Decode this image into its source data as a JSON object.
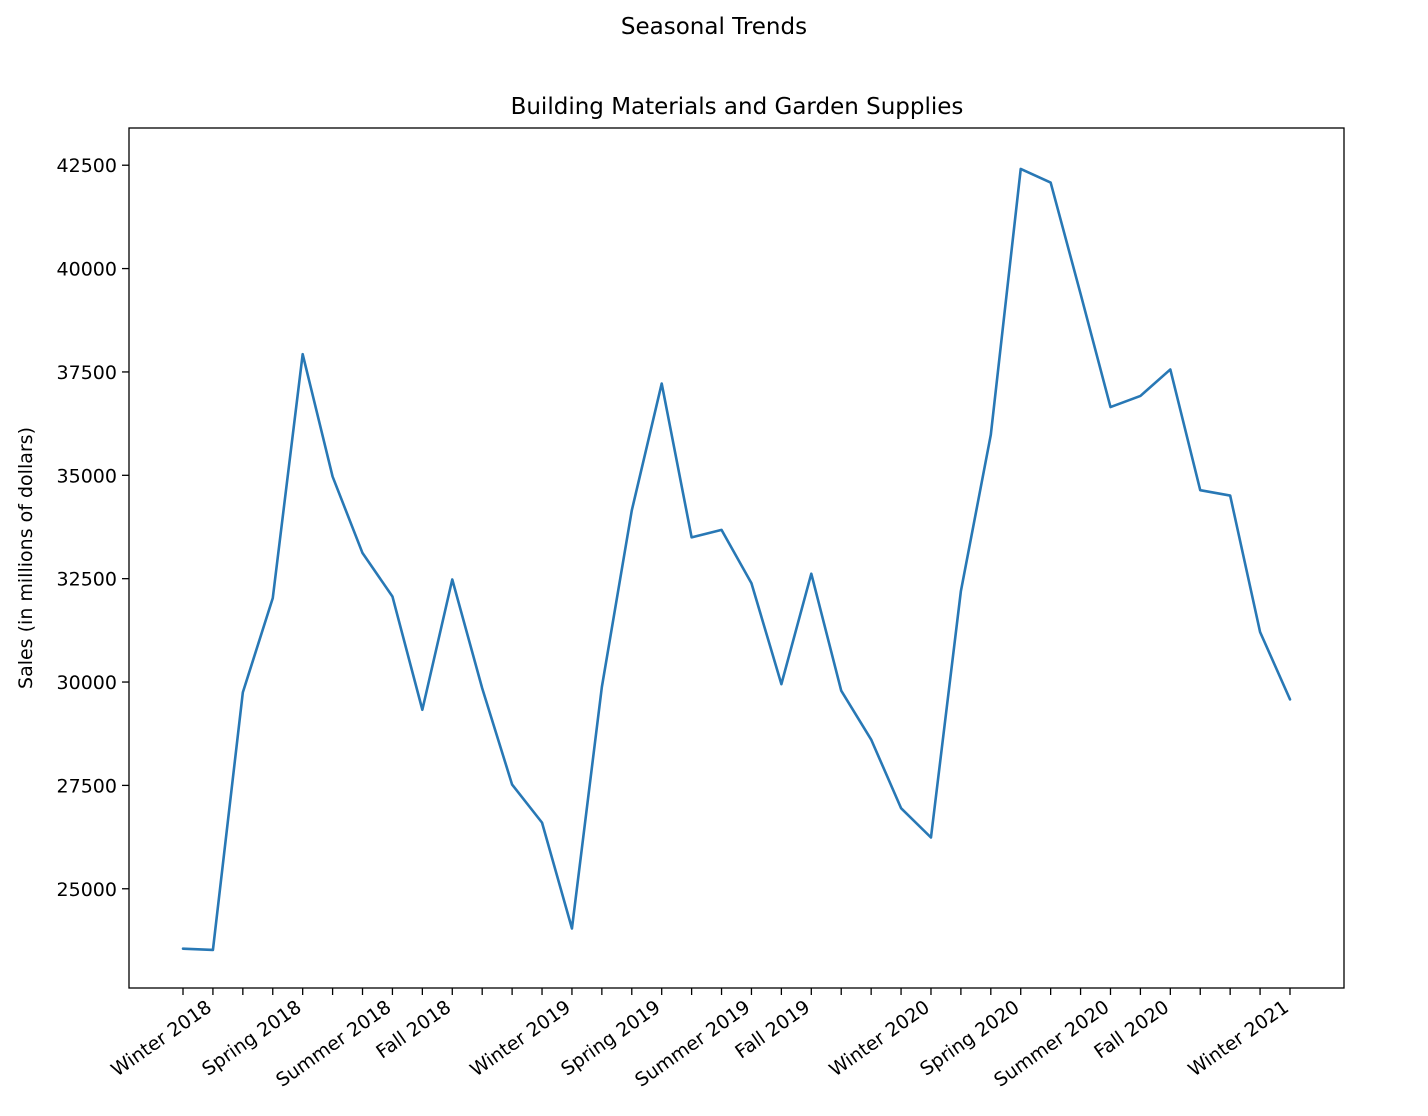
{
  "figure": {
    "suptitle": "Seasonal Trends"
  },
  "chart_data": {
    "type": "line",
    "title": "Building Materials and Garden Supplies",
    "xlabel": "",
    "ylabel": "Sales (in millions of dollars)",
    "ylim": [
      22600,
      43400
    ],
    "yticks": [
      25000,
      27500,
      30000,
      32500,
      35000,
      37500,
      40000,
      42500
    ],
    "grid": false,
    "legend": "none",
    "x_tick_labels": [
      "Winter 2018",
      "Spring 2018",
      "Summer 2018",
      "Fall 2018",
      "Winter 2019",
      "Spring 2019",
      "Summer 2019",
      "Fall 2019",
      "Winter 2020",
      "Spring 2020",
      "Summer 2020",
      "Fall 2020",
      "Winter 2021"
    ],
    "x_tick_label_positions": [
      1,
      4,
      7,
      9,
      13,
      16,
      19,
      21,
      25,
      28,
      31,
      33,
      37
    ],
    "series": [
      {
        "color": "#2878b5",
        "values": [
          23550,
          23520,
          29750,
          32030,
          37930,
          34970,
          33120,
          32070,
          29330,
          32480,
          29850,
          27520,
          26600,
          24040,
          29880,
          34150,
          37220,
          33500,
          33680,
          32390,
          29950,
          32620,
          29790,
          28610,
          26950,
          26240,
          32200,
          35980,
          42410,
          42080,
          39390,
          36650,
          36920,
          37560,
          34640,
          34510,
          31210,
          29580
        ]
      }
    ]
  }
}
